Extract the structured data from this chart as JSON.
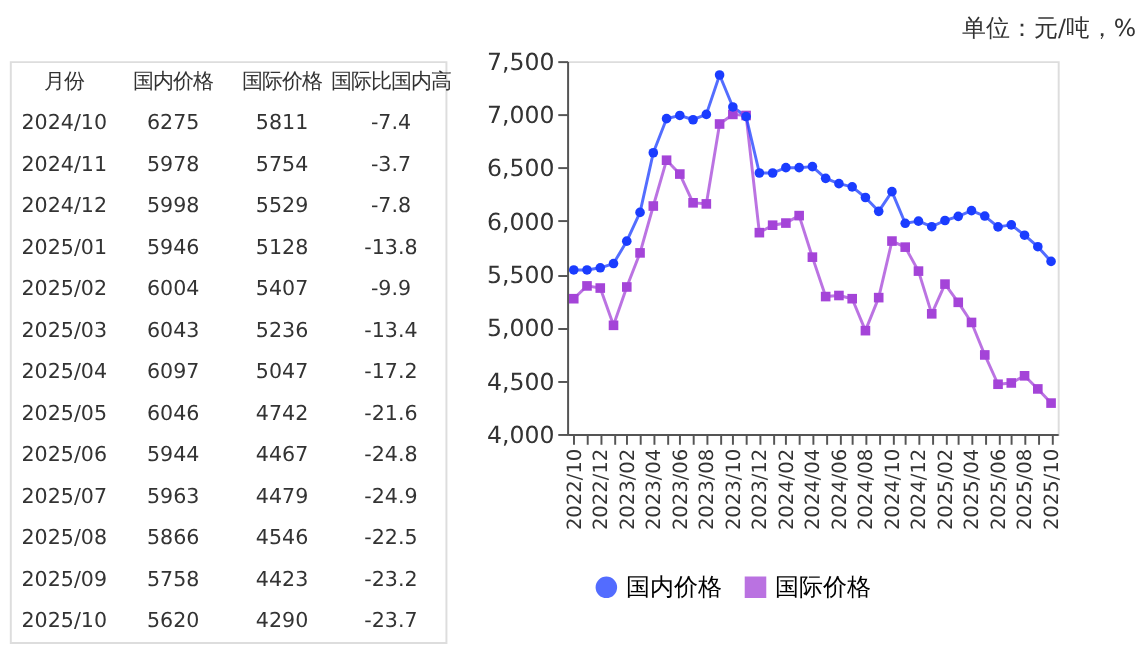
{
  "chart_data": [
    {
      "type": "other",
      "annotations": [
        "月份",
        "国内价格",
        "国际价格",
        "国际比国内高",
        "2024/10",
        "6275",
        "5811",
        "-7.4",
        "2024/11",
        "5978",
        "5754",
        "-3.7",
        "2024/12",
        "5998",
        "5529",
        "-7.8",
        "2025/01",
        "5946",
        "5128",
        "-13.8",
        "2025/02",
        "6004",
        "5407",
        "-9.9",
        "2025/03",
        "6043",
        "5236",
        "-13.4",
        "2025/04",
        "6097",
        "5047",
        "-17.2",
        "2025/05",
        "6046",
        "4742",
        "-21.6",
        "2025/06",
        "5944",
        "4467",
        "-24.8",
        "2025/07",
        "5963",
        "4479",
        "-24.9",
        "2025/08",
        "5866",
        "4546",
        "-22.5",
        "2025/09",
        "5758",
        "4423",
        "-23.2",
        "2025/10",
        "5620",
        "4290",
        "-23.7"
      ]
    },
    {
      "type": "line",
      "annotations": [
        "单位：元/吨，%"
      ],
      "categories": [
        "2022/10",
        null,
        "2022/12",
        null,
        "2023/02",
        null,
        "2023/04",
        null,
        "2023/06",
        null,
        "2023/08",
        null,
        "2023/10",
        null,
        "2023/12",
        null,
        "2024/02",
        null,
        "2024/04",
        null,
        "2024/06",
        null,
        "2024/08",
        null,
        "2024/10",
        null,
        "2024/12",
        null,
        "2025/02",
        null,
        "2025/04",
        null,
        "2025/06",
        null,
        "2025/08",
        null,
        "2025/10"
      ],
      "series": [
        {
          "name": "国内价格",
          "color": "#1a3cff",
          "marker": "circle",
          "values": [
            5540,
            5540,
            5560,
            5600,
            5810,
            6080,
            6640,
            6960,
            6990,
            6950,
            7000,
            7370,
            7070,
            6980,
            6450,
            6450,
            6500,
            6500,
            6510,
            6400,
            6350,
            6320,
            6220,
            6090,
            6275,
            5978,
            5998,
            5946,
            6004,
            6043,
            6097,
            6046,
            5944,
            5963,
            5866,
            5758,
            5620
          ]
        },
        {
          "name": "国际价格",
          "color": "#a444d8",
          "marker": "square",
          "values": [
            5270,
            5390,
            5370,
            5020,
            5380,
            5700,
            6140,
            6570,
            6440,
            6170,
            6160,
            6910,
            7000,
            6990,
            5890,
            5960,
            5980,
            6050,
            5660,
            5290,
            5300,
            5270,
            4970,
            5280,
            5811,
            5754,
            5529,
            5128,
            5407,
            5236,
            5047,
            4742,
            4467,
            4479,
            4546,
            4423,
            4290
          ]
        }
      ],
      "ylim": [
        4000,
        7500
      ],
      "yticks": [
        {
          "value": 4000,
          "label": "4,000"
        },
        {
          "value": 4500,
          "label": "4,500"
        },
        {
          "value": 5000,
          "label": "5,000"
        },
        {
          "value": 5500,
          "label": "5,500"
        },
        {
          "value": 6000,
          "label": "6,000"
        },
        {
          "value": 6500,
          "label": "6,500"
        },
        {
          "value": 7000,
          "label": "7,000"
        },
        {
          "value": 7500,
          "label": "7,500"
        }
      ],
      "grid": false,
      "legend": "bottom",
      "line_style": "solid"
    }
  ]
}
